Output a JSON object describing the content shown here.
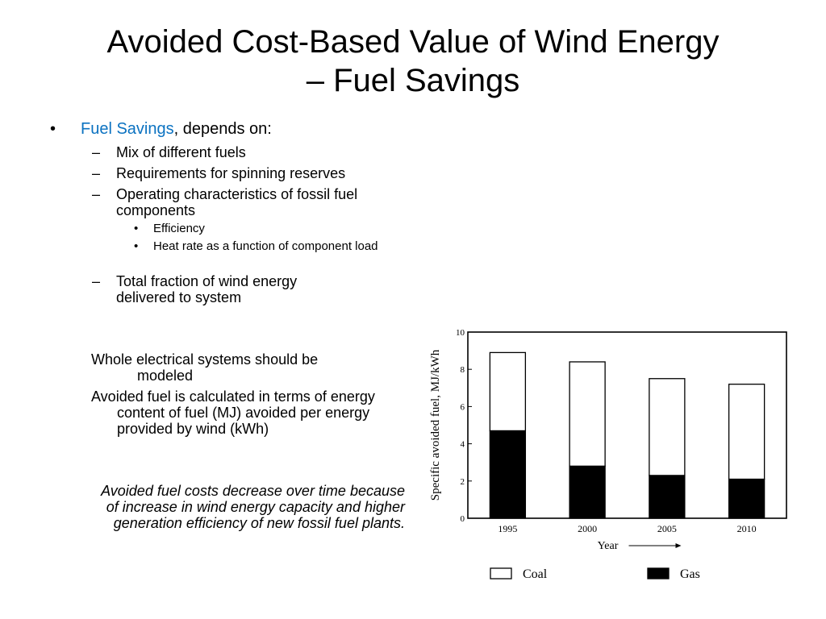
{
  "slide": {
    "title_line1": "Avoided Cost-Based Value of Wind Energy",
    "title_line2": "– Fuel Savings",
    "bullet": {
      "marker": "•",
      "highlight": "Fuel Savings",
      "rest": ", depends on:",
      "accent_color": "#0b72c1"
    },
    "sub_bullets": {
      "dash": "–",
      "items": [
        "Mix of different fuels",
        "Requirements for spinning reserves",
        "Operating characteristics of fossil fuel components",
        "Total fraction of wind energy delivered to system"
      ],
      "nested_marker": "•",
      "nested": [
        "Efficiency",
        "Heat rate as a function of component load"
      ]
    },
    "para1_line1": "Whole electrical systems should be",
    "para1_line2": "modeled",
    "para2": "Avoided fuel is calculated in terms of energy content of fuel (MJ) avoided per energy provided by wind (kWh)",
    "conclusion": "Avoided fuel costs decrease over time because of increase in wind energy capacity and higher generation efficiency of new fossil fuel plants."
  },
  "chart_data": {
    "type": "bar",
    "stacked": true,
    "categories": [
      "1995",
      "2000",
      "2005",
      "2010"
    ],
    "series": [
      {
        "name": "Gas",
        "color": "#000000",
        "values": [
          4.7,
          2.8,
          2.3,
          2.1
        ]
      },
      {
        "name": "Coal",
        "color": "#ffffff",
        "values": [
          4.2,
          5.6,
          5.2,
          5.1
        ]
      }
    ],
    "totals": [
      8.9,
      8.4,
      7.5,
      7.2
    ],
    "ylabel": "Specific avoided fuel, MJ/kWh",
    "xlabel": "Year",
    "ylim": [
      0,
      10
    ],
    "yticks": [
      "0",
      "2",
      "4",
      "6",
      "8",
      "10"
    ],
    "legend": [
      {
        "label": "Coal",
        "fill": "#ffffff"
      },
      {
        "label": "Gas",
        "fill": "#000000"
      }
    ],
    "legend_position": "bottom"
  }
}
